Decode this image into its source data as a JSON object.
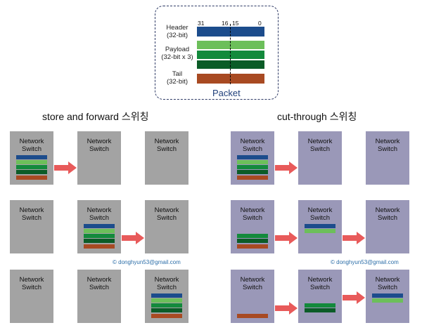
{
  "packet": {
    "caption": "Packet",
    "bits": [
      "31",
      "16",
      "15",
      "0"
    ],
    "rows": [
      {
        "label_line1": "Header",
        "label_line2": "(32-bit)"
      },
      {
        "label_line1": "Payload",
        "label_line2": "(32-bit x 3)"
      },
      {
        "label_line1": "Tail",
        "label_line2": "(32-bit)"
      }
    ]
  },
  "colors": {
    "header": "#1c4c8c",
    "payload_light": "#6cbf5a",
    "payload_mid": "#138a3c",
    "payload_dark": "#0b5c27",
    "tail": "#a84a22",
    "arrow": "#e85a5a",
    "switch_store_forward": "#a3a3a3",
    "switch_cut_through": "#9a98b8"
  },
  "sections": {
    "store_forward": {
      "title": "store and forward 스위칭"
    },
    "cut_through": {
      "title": "cut-through 스위칭"
    }
  },
  "switch": {
    "line1": "Network",
    "line2": "Switch"
  },
  "watermark": "© donghyun53@gmail.com"
}
